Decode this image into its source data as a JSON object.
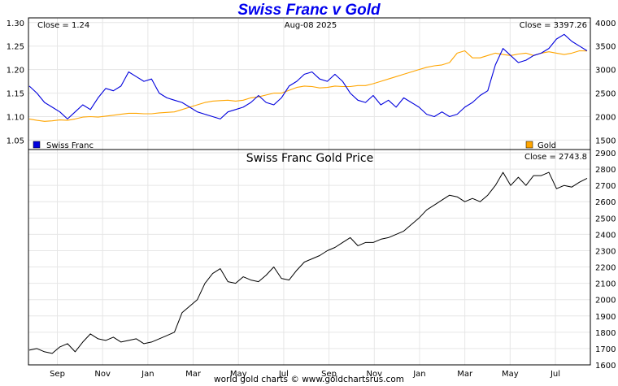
{
  "title": "Swiss Franc v Gold",
  "footer": "world gold charts © www.goldchartsrus.com",
  "x_axis": {
    "ticks": [
      "Sep",
      "Nov",
      "Jan",
      "Mar",
      "May",
      "Jul",
      "Sep",
      "Nov",
      "Jan",
      "Mar",
      "May",
      "Jul"
    ]
  },
  "top_panel": {
    "close_left": "Close = 1.24",
    "date": "Aug-08  2025",
    "close_right": "Close = 3397.26",
    "left_axis_ticks": [
      "1.30",
      "1.25",
      "1.20",
      "1.15",
      "1.10",
      "1.05"
    ],
    "right_axis_ticks": [
      "4000",
      "3500",
      "3000",
      "2500",
      "2000",
      "1500"
    ],
    "legend": [
      {
        "name": "Swiss Franc",
        "color": "#0000dd"
      },
      {
        "name": "Gold",
        "color": "#ffa500"
      }
    ]
  },
  "bottom_panel": {
    "title": "Swiss Franc Gold Price",
    "close": "Close = 2743.8",
    "right_axis_ticks": [
      "2900",
      "2800",
      "2700",
      "2600",
      "2500",
      "2400",
      "2300",
      "2200",
      "2100",
      "2000",
      "1900",
      "1800",
      "1700",
      "1600"
    ]
  },
  "chart_data": [
    {
      "type": "line",
      "x_ticks": [
        "Sep",
        "Nov",
        "Jan",
        "Mar",
        "May",
        "Jul",
        "Sep",
        "Nov",
        "Jan",
        "Mar",
        "May",
        "Jul"
      ],
      "y_left": {
        "ticks": [
          1.05,
          1.1,
          1.15,
          1.2,
          1.25,
          1.3
        ],
        "ylim": [
          1.03,
          1.31
        ]
      },
      "y_right": {
        "ticks": [
          1500,
          2000,
          2500,
          3000,
          3500,
          4000
        ],
        "ylim": [
          1300,
          4100
        ]
      },
      "last_date": "Aug-08  2025",
      "series": [
        {
          "name": "Swiss Franc",
          "axis": "left",
          "color": "#0000dd",
          "values": [
            1.165,
            1.15,
            1.13,
            1.12,
            1.11,
            1.095,
            1.11,
            1.125,
            1.115,
            1.14,
            1.16,
            1.155,
            1.165,
            1.195,
            1.185,
            1.175,
            1.18,
            1.15,
            1.14,
            1.135,
            1.13,
            1.12,
            1.11,
            1.105,
            1.1,
            1.095,
            1.11,
            1.115,
            1.12,
            1.13,
            1.145,
            1.13,
            1.125,
            1.14,
            1.165,
            1.175,
            1.19,
            1.195,
            1.18,
            1.175,
            1.19,
            1.175,
            1.15,
            1.135,
            1.13,
            1.145,
            1.125,
            1.135,
            1.12,
            1.14,
            1.13,
            1.12,
            1.105,
            1.1,
            1.11,
            1.1,
            1.105,
            1.12,
            1.13,
            1.145,
            1.155,
            1.21,
            1.245,
            1.23,
            1.215,
            1.22,
            1.23,
            1.235,
            1.245,
            1.265,
            1.275,
            1.26,
            1.25,
            1.24
          ]
        },
        {
          "name": "Gold",
          "axis": "right",
          "color": "#ffa500",
          "values": [
            1950,
            1920,
            1900,
            1910,
            1930,
            1920,
            1950,
            1990,
            2000,
            1990,
            2010,
            2030,
            2050,
            2070,
            2070,
            2060,
            2060,
            2080,
            2090,
            2100,
            2150,
            2200,
            2250,
            2300,
            2330,
            2340,
            2350,
            2330,
            2350,
            2400,
            2420,
            2460,
            2500,
            2500,
            2560,
            2620,
            2650,
            2640,
            2610,
            2620,
            2650,
            2640,
            2640,
            2660,
            2660,
            2700,
            2750,
            2800,
            2850,
            2900,
            2950,
            3000,
            3050,
            3080,
            3100,
            3150,
            3350,
            3400,
            3250,
            3250,
            3300,
            3350,
            3320,
            3300,
            3330,
            3350,
            3300,
            3350,
            3380,
            3350,
            3320,
            3350,
            3400,
            3397.26
          ]
        }
      ]
    },
    {
      "type": "line",
      "title": "Swiss Franc Gold Price",
      "x_ticks": [
        "Sep",
        "Nov",
        "Jan",
        "Mar",
        "May",
        "Jul",
        "Sep",
        "Nov",
        "Jan",
        "Mar",
        "May",
        "Jul"
      ],
      "y_right": {
        "ticks": [
          1600,
          1700,
          1800,
          1900,
          2000,
          2100,
          2200,
          2300,
          2400,
          2500,
          2600,
          2700,
          2800,
          2900
        ],
        "ylim": [
          1600,
          2920
        ]
      },
      "close": 2743.8,
      "series": [
        {
          "name": "Swiss Franc Gold Price",
          "axis": "right",
          "color": "#000000",
          "values": [
            1690,
            1700,
            1680,
            1670,
            1710,
            1730,
            1680,
            1740,
            1790,
            1760,
            1750,
            1770,
            1740,
            1750,
            1760,
            1730,
            1740,
            1760,
            1780,
            1800,
            1920,
            1960,
            2000,
            2100,
            2160,
            2190,
            2110,
            2100,
            2140,
            2120,
            2110,
            2150,
            2200,
            2130,
            2120,
            2180,
            2230,
            2250,
            2270,
            2300,
            2320,
            2350,
            2380,
            2330,
            2350,
            2350,
            2370,
            2380,
            2400,
            2420,
            2460,
            2500,
            2550,
            2580,
            2610,
            2640,
            2630,
            2600,
            2620,
            2600,
            2640,
            2700,
            2780,
            2700,
            2750,
            2700,
            2760,
            2760,
            2780,
            2680,
            2700,
            2690,
            2720,
            2743.8
          ]
        }
      ]
    }
  ]
}
